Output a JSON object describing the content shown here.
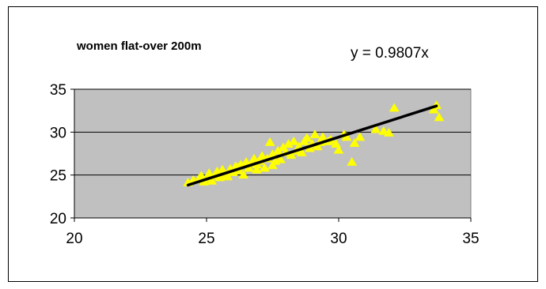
{
  "chart_data": {
    "type": "scatter",
    "title": "women flat-over 200m",
    "annotation": "y = 0.9807x",
    "xlabel": "",
    "ylabel": "",
    "xlim": [
      20,
      35
    ],
    "ylim": [
      20,
      35
    ],
    "x_ticks": [
      20,
      25,
      30,
      35
    ],
    "y_ticks": [
      20,
      25,
      30,
      35
    ],
    "grid": "horizontal",
    "plot_background": "#c0c0c0",
    "marker_color": "#ffff00",
    "trendline_color": "#000000",
    "trendline": {
      "slope": 0.9807,
      "intercept": 0,
      "x_range": [
        24.3,
        33.7
      ]
    },
    "series": [
      {
        "points": [
          [
            24.3,
            24.1
          ],
          [
            24.5,
            24.4
          ],
          [
            24.7,
            24.5
          ],
          [
            24.8,
            24.9
          ],
          [
            25.0,
            24.6
          ],
          [
            25.1,
            25.2
          ],
          [
            25.2,
            24.3
          ],
          [
            25.3,
            24.9
          ],
          [
            25.4,
            25.4
          ],
          [
            25.5,
            24.7
          ],
          [
            25.6,
            25.6
          ],
          [
            25.7,
            25.1
          ],
          [
            25.8,
            24.8
          ],
          [
            25.9,
            25.7
          ],
          [
            26.0,
            25.3
          ],
          [
            26.1,
            26.0
          ],
          [
            26.2,
            25.5
          ],
          [
            26.3,
            26.2
          ],
          [
            26.4,
            25.0
          ],
          [
            26.5,
            26.5
          ],
          [
            26.6,
            25.8
          ],
          [
            26.7,
            26.4
          ],
          [
            26.8,
            26.9
          ],
          [
            26.9,
            25.6
          ],
          [
            27.0,
            26.6
          ],
          [
            27.1,
            27.2
          ],
          [
            27.2,
            25.8
          ],
          [
            27.3,
            26.9
          ],
          [
            27.4,
            28.8
          ],
          [
            27.5,
            27.4
          ],
          [
            27.6,
            26.6
          ],
          [
            27.7,
            27.8
          ],
          [
            27.8,
            26.8
          ],
          [
            27.9,
            28.2
          ],
          [
            28.0,
            27.6
          ],
          [
            28.1,
            28.6
          ],
          [
            28.2,
            27.3
          ],
          [
            28.3,
            28.9
          ],
          [
            28.4,
            27.8
          ],
          [
            28.5,
            28.3
          ],
          [
            28.6,
            27.6
          ],
          [
            28.7,
            28.9
          ],
          [
            28.8,
            29.3
          ],
          [
            28.9,
            28.1
          ],
          [
            29.0,
            28.6
          ],
          [
            29.1,
            29.7
          ],
          [
            29.2,
            28.3
          ],
          [
            29.3,
            28.8
          ],
          [
            29.4,
            29.4
          ],
          [
            29.6,
            28.9
          ],
          [
            29.7,
            29.1
          ],
          [
            29.9,
            28.6
          ],
          [
            30.0,
            27.9
          ],
          [
            30.2,
            29.7
          ],
          [
            30.3,
            29.4
          ],
          [
            30.5,
            26.5
          ],
          [
            30.6,
            28.7
          ],
          [
            30.8,
            29.4
          ],
          [
            31.4,
            30.3
          ],
          [
            31.7,
            30.1
          ],
          [
            31.9,
            29.9
          ],
          [
            32.1,
            32.8
          ],
          [
            33.7,
            33.1
          ],
          [
            33.8,
            31.7
          ],
          [
            33.6,
            32.6
          ],
          [
            24.9,
            24.2
          ],
          [
            25.5,
            25.0
          ],
          [
            26.2,
            25.9
          ],
          [
            26.9,
            26.2
          ],
          [
            27.5,
            26.1
          ]
        ]
      }
    ]
  }
}
